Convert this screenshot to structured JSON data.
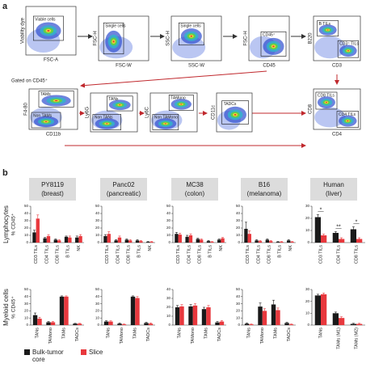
{
  "panel_a": {
    "label": "a",
    "gate_note": "Gated on CD45⁺",
    "plots": [
      {
        "y_label": "Viability dye",
        "x_label": "FSC-A",
        "gates": [
          "Viable cells"
        ]
      },
      {
        "y_label": "FSC-H",
        "x_label": "FSC-W",
        "gates": [
          "Single cells"
        ]
      },
      {
        "y_label": "SSC-H",
        "x_label": "SSC-W",
        "gates": [
          "Single cells"
        ]
      },
      {
        "y_label": "FSC-H",
        "x_label": "CD45",
        "gates": [
          "CD45⁺"
        ]
      },
      {
        "y_label": "B220",
        "x_label": "CD3",
        "gates": [
          "B TILs",
          "CD3⁺ TILs"
        ]
      },
      {
        "y_label": "F4-80",
        "x_label": "CD11b",
        "gates": [
          "TAMs",
          "Non TAMs"
        ]
      },
      {
        "y_label": "Ly6G",
        "gates": [
          "TANs",
          "Non TANs"
        ]
      },
      {
        "y_label": "Ly6C",
        "gates": [
          "TAMono",
          "Non TAMono"
        ]
      },
      {
        "y_label": "CD11c",
        "gates": [
          "TADCs"
        ]
      },
      {
        "y_label": "CD8",
        "x_label": "CD4",
        "gates": [
          "CD8 TILs",
          "CD4 TILs"
        ]
      }
    ]
  },
  "panel_b": {
    "label": "b",
    "row_labels": [
      "Lymphocytes",
      "Myeloid cells"
    ],
    "y_label": "% CD45⁺",
    "legend": [
      {
        "name": "Bulk-tumor core",
        "color": "#1a1a1a"
      },
      {
        "name": "Slice",
        "color": "#e8383d"
      }
    ]
  },
  "chart_data": [
    {
      "type": "bar",
      "title": "PY8119",
      "subtitle": "(breast)",
      "categories": [
        "CD3 TILs",
        "CD4 TILs",
        "CD8 TILs",
        "B TILs",
        "NK"
      ],
      "series": [
        {
          "values": [
            14,
            6,
            4,
            8,
            7
          ],
          "errors": [
            3,
            1,
            1,
            1,
            2
          ]
        },
        {
          "values": [
            33,
            9,
            3,
            7,
            9
          ],
          "errors": [
            5,
            2,
            1,
            2,
            2
          ]
        }
      ],
      "ylim": [
        0,
        50
      ],
      "yticks": [
        0,
        10,
        20,
        30,
        40,
        50
      ]
    },
    {
      "type": "bar",
      "title": "Panc02",
      "subtitle": "(pancreatic)",
      "categories": [
        "CD3 TILs",
        "CD4 TILs",
        "CD8 TILs",
        "B TILs",
        "NK"
      ],
      "series": [
        {
          "values": [
            9,
            3,
            4,
            3,
            1
          ],
          "errors": [
            2,
            1,
            1,
            1,
            0.5
          ]
        },
        {
          "values": [
            12,
            7,
            3,
            2,
            1
          ],
          "errors": [
            3,
            2,
            1,
            1,
            0.5
          ]
        }
      ],
      "ylim": [
        0,
        50
      ],
      "yticks": [
        0,
        10,
        20,
        30,
        40,
        50
      ]
    },
    {
      "type": "bar",
      "title": "MC38",
      "subtitle": "(colon)",
      "categories": [
        "CD3 TILs",
        "CD4 TILs",
        "CD8 TILs",
        "B TILs",
        "NK"
      ],
      "series": [
        {
          "values": [
            12,
            8,
            5,
            2,
            4
          ],
          "errors": [
            2,
            2,
            1,
            1,
            1
          ]
        },
        {
          "values": [
            11,
            10,
            4,
            1,
            6
          ],
          "errors": [
            2,
            2,
            1,
            0.5,
            1
          ]
        }
      ],
      "ylim": [
        0,
        50
      ],
      "yticks": [
        0,
        10,
        20,
        30,
        40,
        50
      ]
    },
    {
      "type": "bar",
      "title": "B16",
      "subtitle": "(melanoma)",
      "categories": [
        "CD3 TILs",
        "CD4 TILs",
        "CD8 TILs",
        "B TILs",
        "NK"
      ],
      "series": [
        {
          "values": [
            19,
            3,
            4,
            1,
            3
          ],
          "errors": [
            9,
            1,
            1,
            0.5,
            1
          ]
        },
        {
          "values": [
            12,
            2,
            2,
            1,
            1
          ],
          "errors": [
            4,
            1,
            1,
            0.5,
            0.5
          ]
        }
      ],
      "ylim": [
        0,
        50
      ],
      "yticks": [
        0,
        10,
        20,
        30,
        40,
        50
      ]
    },
    {
      "type": "bar",
      "title": "Human",
      "subtitle": "(liver)",
      "categories": [
        "CD3 TILs",
        "CD4 TILs",
        "CD8 TILs"
      ],
      "series": [
        {
          "values": [
            21,
            8,
            11
          ],
          "errors": [
            2,
            1,
            2
          ]
        },
        {
          "values": [
            6,
            3,
            3
          ],
          "errors": [
            1,
            1,
            1
          ]
        }
      ],
      "annotations": [
        "*",
        "**",
        "*"
      ],
      "ylim": [
        0,
        30
      ],
      "yticks": [
        0,
        10,
        20,
        30
      ]
    },
    {
      "type": "bar",
      "categories": [
        "TANs",
        "TAMono",
        "TAMs",
        "TADCs"
      ],
      "series": [
        {
          "values": [
            14,
            4,
            40,
            2
          ],
          "errors": [
            3,
            1,
            1,
            0.5
          ]
        },
        {
          "values": [
            9,
            4,
            40,
            2
          ],
          "errors": [
            2,
            1,
            1,
            0.5
          ]
        }
      ],
      "ylim": [
        0,
        50
      ],
      "yticks": [
        0,
        10,
        20,
        30,
        40,
        50
      ]
    },
    {
      "type": "bar",
      "categories": [
        "TANs",
        "TAMono",
        "TAMs",
        "TADCs"
      ],
      "series": [
        {
          "values": [
            5,
            2,
            40,
            3
          ],
          "errors": [
            1,
            1,
            1,
            1
          ]
        },
        {
          "values": [
            5,
            1,
            38,
            2
          ],
          "errors": [
            1,
            0.5,
            2,
            1
          ]
        }
      ],
      "ylim": [
        0,
        50
      ],
      "yticks": [
        0,
        10,
        20,
        30,
        40,
        50
      ]
    },
    {
      "type": "bar",
      "categories": [
        "TANs",
        "TAMono",
        "TAMs",
        "TADCs"
      ],
      "series": [
        {
          "values": [
            20,
            21,
            18,
            3
          ],
          "errors": [
            2,
            2,
            2,
            1
          ]
        },
        {
          "values": [
            21,
            22,
            20,
            4
          ],
          "errors": [
            2,
            2,
            2,
            1
          ]
        }
      ],
      "ylim": [
        0,
        40
      ],
      "yticks": [
        0,
        10,
        20,
        30,
        40
      ]
    },
    {
      "type": "bar",
      "categories": [
        "TANs",
        "TAMono",
        "TAMs",
        "TADCs"
      ],
      "series": [
        {
          "values": [
            2,
            26,
            29,
            3
          ],
          "errors": [
            1,
            5,
            6,
            1
          ]
        },
        {
          "values": [
            1,
            20,
            21,
            1
          ],
          "errors": [
            0.5,
            3,
            3,
            0.5
          ]
        }
      ],
      "ylim": [
        0,
        50
      ],
      "yticks": [
        0,
        10,
        20,
        30,
        40,
        50
      ]
    },
    {
      "type": "bar",
      "categories": [
        "TANs",
        "TAMs (M1)",
        "TAMs (M2)"
      ],
      "series": [
        {
          "values": [
            25,
            10,
            1
          ],
          "errors": [
            1,
            1,
            0.5
          ]
        },
        {
          "values": [
            26,
            6,
            1
          ],
          "errors": [
            1,
            1,
            0.5
          ]
        }
      ],
      "ylim": [
        0,
        30
      ],
      "yticks": [
        0,
        10,
        20,
        30
      ]
    }
  ]
}
